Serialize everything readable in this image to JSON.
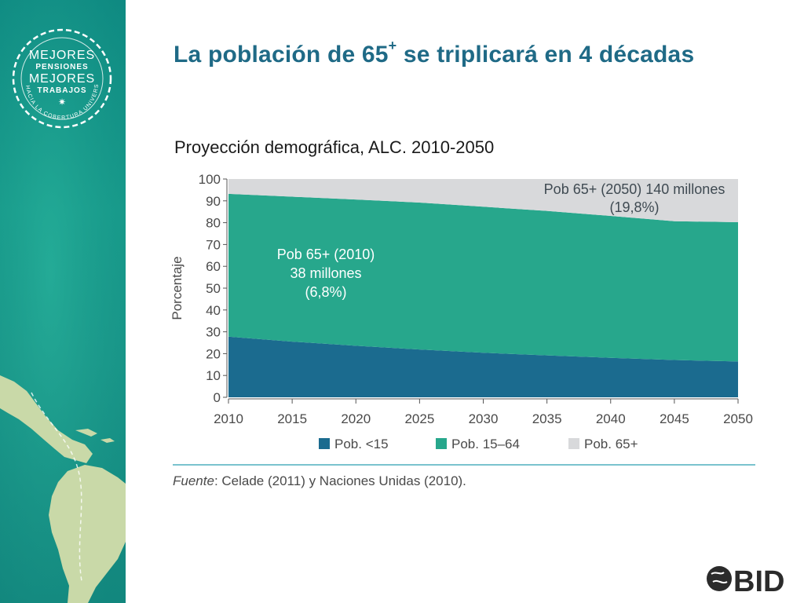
{
  "slide": {
    "title_main": "La población de 65",
    "title_sup": "+",
    "title_rest": " se triplicará en 4 décadas",
    "subtitle": "Proyección demográfica, ALC. 2010-2050"
  },
  "logo": {
    "line1": "MEJORES",
    "line2": "PENSIONES",
    "line3": "MEJORES",
    "line4": "TRABAJOS",
    "ring_text": "HACIA LA COBERTURA UNIVERSAL"
  },
  "footer_logo": {
    "text": "BID"
  },
  "source": {
    "label": "Fuente",
    "text": ": Celade (2011) y Naciones Unidas (2010)."
  },
  "colors": {
    "under15": "#1b6b8f",
    "age15_64": "#27a78c",
    "over65": "#d8d9db",
    "title": "#1f6a86"
  },
  "chart_data": {
    "type": "area",
    "stacked": true,
    "x": [
      2010,
      2015,
      2020,
      2025,
      2030,
      2035,
      2040,
      2045,
      2050
    ],
    "series": [
      {
        "name": "Pob. <15",
        "values": [
          27.8,
          25.5,
          23.6,
          21.9,
          20.4,
          19.2,
          18.1,
          17.1,
          16.4
        ]
      },
      {
        "name": "Pob. 15–64",
        "values": [
          65.4,
          66.4,
          67.0,
          67.3,
          66.9,
          66.2,
          65.0,
          63.6,
          63.8
        ]
      },
      {
        "name": "Pob. 65+",
        "values": [
          6.8,
          8.1,
          9.4,
          10.8,
          12.7,
          14.6,
          16.9,
          19.3,
          19.8
        ]
      }
    ],
    "ylabel": "Porcentaje",
    "xlabel": "",
    "ylim": [
      0,
      100
    ],
    "yticks": [
      0,
      10,
      20,
      30,
      40,
      50,
      60,
      70,
      80,
      90,
      100
    ],
    "legend_position": "bottom",
    "grid": false,
    "annotations": [
      {
        "lines": [
          "Pob 65+ (2010)",
          "38 millones",
          "(6,8%)"
        ]
      },
      {
        "lines": [
          "Pob 65+ (2050) 140 millones",
          "(19,8%)"
        ]
      }
    ]
  }
}
